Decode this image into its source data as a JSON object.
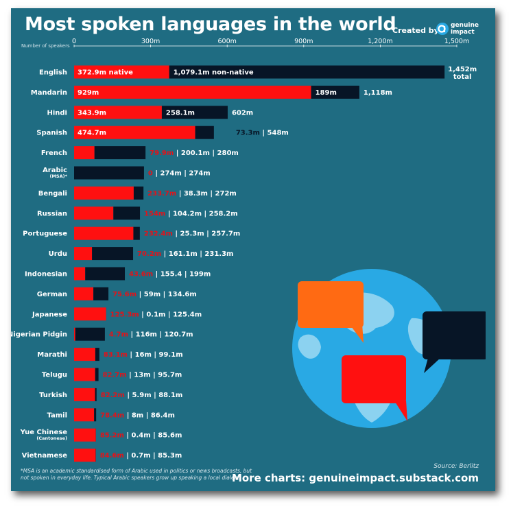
{
  "header": {
    "title": "Most spoken languages in the world",
    "created_by": "Created by",
    "brand_line1": "genuine",
    "brand_line2": "impact"
  },
  "axis": {
    "title": "Number of speakers",
    "ticks": [
      "0",
      "300m",
      "600m",
      "900m",
      "1,200m",
      "1,500m"
    ]
  },
  "footer": {
    "footnote": "*MSA is an academic standardised form of Arabic used in politics or news broadcasts, but not spoken in everyday life. Typical Arabic speakers grow up speaking a local dialect.",
    "source": "Source: Berlitz",
    "more_charts": "More charts: genuineimpact.substack.com"
  },
  "colors": {
    "background": "#1f6c82",
    "native": "#ff1010",
    "non_native": "#071526",
    "native_text": "#e0141b",
    "globe_ocean": "#29a9e4",
    "globe_land": "#8cd2f0",
    "bubble_orange": "#ff6a13",
    "bubble_red": "#ff1010",
    "bubble_dark": "#071526"
  },
  "chart_data": {
    "type": "bar",
    "orientation": "horizontal",
    "stacked": true,
    "title": "Most spoken languages in the world",
    "xlabel": "Number of speakers",
    "xlim": [
      0,
      1500
    ],
    "units": "millions",
    "categories": [
      "English",
      "Mandarin",
      "Hindi",
      "Spanish",
      "French",
      "Arabic",
      "Bengali",
      "Russian",
      "Portuguese",
      "Urdu",
      "Indonesian",
      "German",
      "Japanese",
      "Nigerian Pidgin",
      "Marathi",
      "Telugu",
      "Turkish",
      "Tamil",
      "Yue Chinese",
      "Vietnamese"
    ],
    "sublabels": {
      "Arabic": "(MSA)*",
      "Yue Chinese": "(Cantonese)"
    },
    "series": [
      {
        "name": "native",
        "values": [
          372.9,
          929,
          343.9,
          474.7,
          79.9,
          0,
          233.7,
          154,
          232.4,
          70.2,
          43.6,
          75.6,
          125.3,
          4.7,
          83.1,
          82.7,
          82.2,
          78.4,
          85.2,
          84.6
        ]
      },
      {
        "name": "non-native",
        "values": [
          1079.1,
          189,
          258.1,
          73.3,
          200.1,
          274,
          38.3,
          104.2,
          25.3,
          161.1,
          155.4,
          59,
          0.1,
          116,
          16,
          13,
          5.9,
          8,
          0.4,
          0.7
        ]
      },
      {
        "name": "total",
        "values": [
          1452,
          1118,
          602,
          548,
          280,
          274,
          272,
          258.2,
          257.7,
          231.3,
          199,
          134.6,
          125.4,
          120.7,
          99.1,
          95.7,
          88.1,
          86.4,
          85.6,
          85.3
        ]
      }
    ],
    "value_labels": [
      {
        "native": "372.9m native",
        "non_native": "1,079.1m non-native",
        "total": "1,452m",
        "total_sub": "total"
      },
      {
        "native": "929m",
        "non_native": "189m",
        "total": "1,118m"
      },
      {
        "native": "343.9m",
        "non_native": "258.1m",
        "total": "602m"
      },
      {
        "native": "474.7m",
        "non_native": "73.3m",
        "total": "548m"
      },
      {
        "native": "79.9m",
        "non_native": "200.1m",
        "total": "280m"
      },
      {
        "native": "0",
        "non_native": "274m",
        "total": "274m"
      },
      {
        "native": "233.7m",
        "non_native": "38.3m",
        "total": "272m"
      },
      {
        "native": "154m",
        "non_native": "104.2m",
        "total": "258.2m"
      },
      {
        "native": "232.4m",
        "non_native": "25.3m",
        "total": "257.7m"
      },
      {
        "native": "70.2m",
        "non_native": "161.1m",
        "total": "231.3m"
      },
      {
        "native": "43.6m",
        "non_native": "155.4",
        "total": "199m"
      },
      {
        "native": "75.6m",
        "non_native": "59m",
        "total": "134.6m"
      },
      {
        "native": "125.3m",
        "non_native": "0.1m",
        "total": "125.4m"
      },
      {
        "native": "4.7m",
        "non_native": "116m",
        "total": "120.7m"
      },
      {
        "native": "83.1m",
        "non_native": "16m",
        "total": "99.1m"
      },
      {
        "native": "82.7m",
        "non_native": "13m",
        "total": "95.7m"
      },
      {
        "native": "82.2m",
        "non_native": "5.9m",
        "total": "88.1m"
      },
      {
        "native": "78.4m",
        "non_native": "8m",
        "total": "86.4m"
      },
      {
        "native": "85.2m",
        "non_native": "0.4m",
        "total": "85.6m"
      },
      {
        "native": "84.6m",
        "non_native": "0.7m",
        "total": "85.3m"
      }
    ],
    "grid": false
  }
}
